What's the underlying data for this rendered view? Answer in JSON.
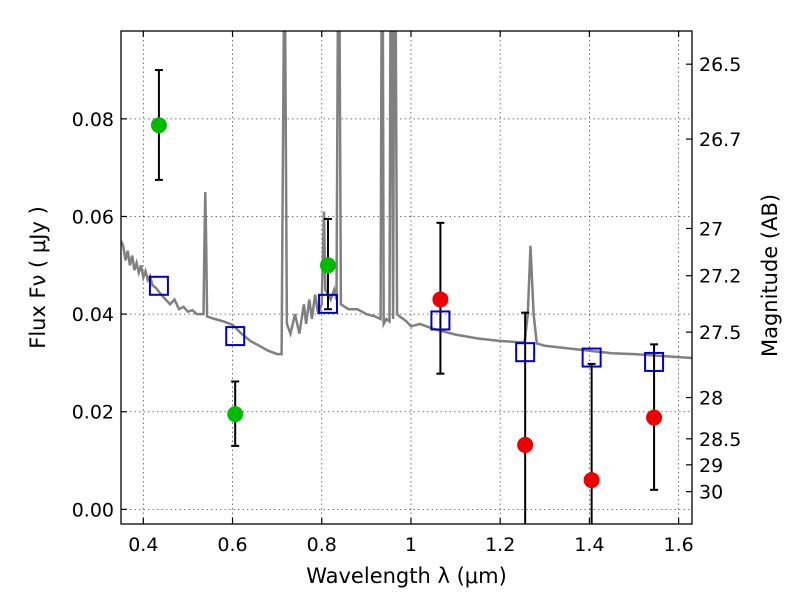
{
  "chart_data": {
    "type": "scatter",
    "xlabel": "Wavelength  λ (μm)",
    "ylabel": "Flux  Fν  ( μJy )",
    "y2label": "Magnitude (AB)",
    "xlim": [
      0.35,
      1.63
    ],
    "ylim": [
      -0.003,
      0.098
    ],
    "grid": true,
    "x_ticks": [
      0.4,
      0.6,
      0.8,
      1.0,
      1.2,
      1.4,
      1.6
    ],
    "x_tick_labels": [
      "0.4",
      "0.6",
      "0.8",
      "1",
      "1.2",
      "1.4",
      "1.6"
    ],
    "y_ticks": [
      0.0,
      0.02,
      0.04,
      0.06,
      0.08
    ],
    "y_tick_labels": [
      "0.00",
      "0.02",
      "0.04",
      "0.06",
      "0.08"
    ],
    "y2_ticks": [
      {
        "label": "26.5",
        "mag": 26.5
      },
      {
        "label": "26.7",
        "mag": 26.7
      },
      {
        "label": "27",
        "mag": 27.0
      },
      {
        "label": "27.2",
        "mag": 27.2
      },
      {
        "label": "27.5",
        "mag": 27.5
      },
      {
        "label": "28",
        "mag": 28.0
      },
      {
        "label": "28.5",
        "mag": 28.5
      },
      {
        "label": "29",
        "mag": 29.0
      },
      {
        "label": "30",
        "mag": 30.0
      }
    ],
    "colors": {
      "green": "#00bb00",
      "red": "#ee0000",
      "model_box": "#0000cc",
      "spectrum": "#808080",
      "errorbar": "#000000"
    },
    "green_points": [
      {
        "x": 0.435,
        "y": 0.0787,
        "yerr_low": 0.0675,
        "yerr_high": 0.09
      },
      {
        "x": 0.606,
        "y": 0.0195,
        "yerr_low": 0.013,
        "yerr_high": 0.0262
      },
      {
        "x": 0.814,
        "y": 0.05,
        "yerr_low": 0.041,
        "yerr_high": 0.0595
      }
    ],
    "red_points": [
      {
        "x": 1.066,
        "y": 0.043,
        "yerr_low": 0.0278,
        "yerr_high": 0.0587
      },
      {
        "x": 1.256,
        "y": 0.0132,
        "yerr_low": -0.003,
        "yerr_high": 0.0403
      },
      {
        "x": 1.405,
        "y": 0.006,
        "yerr_low": -0.003,
        "yerr_high": 0.0298
      },
      {
        "x": 1.545,
        "y": 0.0188,
        "yerr_low": 0.004,
        "yerr_high": 0.0338
      }
    ],
    "model_points": [
      {
        "x": 0.435,
        "y": 0.0458
      },
      {
        "x": 0.606,
        "y": 0.0355
      },
      {
        "x": 0.814,
        "y": 0.0421
      },
      {
        "x": 1.066,
        "y": 0.0387
      },
      {
        "x": 1.256,
        "y": 0.0322
      },
      {
        "x": 1.405,
        "y": 0.0311
      },
      {
        "x": 1.545,
        "y": 0.0302
      }
    ],
    "spectrum": [
      [
        0.35,
        0.055
      ],
      [
        0.355,
        0.054
      ],
      [
        0.36,
        0.051
      ],
      [
        0.365,
        0.053
      ],
      [
        0.37,
        0.05
      ],
      [
        0.375,
        0.052
      ],
      [
        0.38,
        0.049
      ],
      [
        0.385,
        0.0505
      ],
      [
        0.39,
        0.0485
      ],
      [
        0.395,
        0.05
      ],
      [
        0.4,
        0.0475
      ],
      [
        0.405,
        0.0488
      ],
      [
        0.41,
        0.047
      ],
      [
        0.415,
        0.0478
      ],
      [
        0.42,
        0.046
      ],
      [
        0.43,
        0.0452
      ],
      [
        0.44,
        0.044
      ],
      [
        0.45,
        0.043
      ],
      [
        0.46,
        0.042
      ],
      [
        0.47,
        0.043
      ],
      [
        0.48,
        0.041
      ],
      [
        0.49,
        0.0415
      ],
      [
        0.5,
        0.0405
      ],
      [
        0.51,
        0.0408
      ],
      [
        0.52,
        0.04
      ],
      [
        0.53,
        0.04
      ],
      [
        0.535,
        0.04
      ],
      [
        0.537,
        0.054
      ],
      [
        0.539,
        0.065
      ],
      [
        0.541,
        0.054
      ],
      [
        0.543,
        0.0395
      ],
      [
        0.56,
        0.039
      ],
      [
        0.58,
        0.0385
      ],
      [
        0.6,
        0.0378
      ],
      [
        0.62,
        0.036
      ],
      [
        0.64,
        0.0345
      ],
      [
        0.66,
        0.0335
      ],
      [
        0.68,
        0.0325
      ],
      [
        0.7,
        0.0318
      ],
      [
        0.71,
        0.0318
      ],
      [
        0.712,
        0.06
      ],
      [
        0.715,
        0.098
      ],
      [
        0.718,
        0.098
      ],
      [
        0.722,
        0.038
      ],
      [
        0.73,
        0.036
      ],
      [
        0.74,
        0.04
      ],
      [
        0.75,
        0.036
      ],
      [
        0.76,
        0.042
      ],
      [
        0.765,
        0.038
      ],
      [
        0.772,
        0.043
      ],
      [
        0.778,
        0.039
      ],
      [
        0.785,
        0.044
      ],
      [
        0.792,
        0.04
      ],
      [
        0.8,
        0.042
      ],
      [
        0.805,
        0.061
      ],
      [
        0.808,
        0.045
      ],
      [
        0.815,
        0.044
      ],
      [
        0.82,
        0.043
      ],
      [
        0.828,
        0.045
      ],
      [
        0.833,
        0.043
      ],
      [
        0.836,
        0.098
      ],
      [
        0.84,
        0.098
      ],
      [
        0.843,
        0.042
      ],
      [
        0.86,
        0.041
      ],
      [
        0.88,
        0.041
      ],
      [
        0.9,
        0.04
      ],
      [
        0.92,
        0.0395
      ],
      [
        0.932,
        0.039
      ],
      [
        0.934,
        0.098
      ],
      [
        0.937,
        0.098
      ],
      [
        0.939,
        0.038
      ],
      [
        0.945,
        0.039
      ],
      [
        0.952,
        0.0385
      ],
      [
        0.954,
        0.098
      ],
      [
        0.957,
        0.098
      ],
      [
        0.96,
        0.039
      ],
      [
        0.962,
        0.098
      ],
      [
        0.966,
        0.098
      ],
      [
        0.969,
        0.04
      ],
      [
        0.975,
        0.0395
      ],
      [
        0.99,
        0.0385
      ],
      [
        1.0,
        0.0375
      ],
      [
        1.02,
        0.038
      ],
      [
        1.05,
        0.037
      ],
      [
        1.1,
        0.0358
      ],
      [
        1.15,
        0.035
      ],
      [
        1.2,
        0.0345
      ],
      [
        1.25,
        0.0342
      ],
      [
        1.255,
        0.0345
      ],
      [
        1.262,
        0.04
      ],
      [
        1.268,
        0.054
      ],
      [
        1.275,
        0.04
      ],
      [
        1.282,
        0.034
      ],
      [
        1.3,
        0.0335
      ],
      [
        1.35,
        0.033
      ],
      [
        1.4,
        0.0325
      ],
      [
        1.45,
        0.032
      ],
      [
        1.5,
        0.0318
      ],
      [
        1.55,
        0.0315
      ],
      [
        1.6,
        0.0312
      ],
      [
        1.63,
        0.031
      ]
    ]
  }
}
